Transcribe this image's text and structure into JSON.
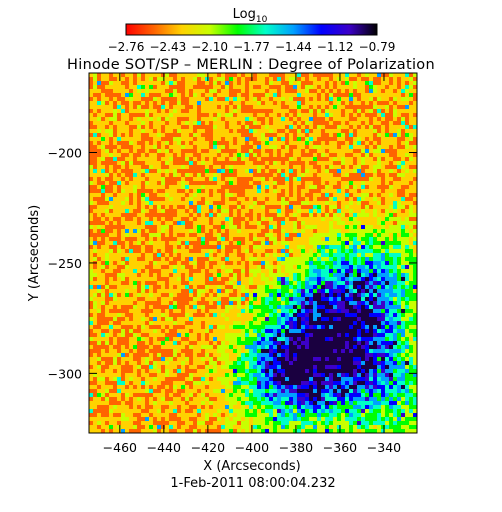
{
  "chart_data": {
    "type": "heatmap",
    "title": "Hinode SOT/SP – MERLIN : Degree of Polarization",
    "xlabel": "X (Arcseconds)",
    "ylabel": "Y (Arcseconds)",
    "date_label": "1-Feb-2011 08:00:04.232",
    "colorbar": {
      "label_main": "Log",
      "label_sub": "10",
      "ticks": [
        "−2.76",
        "−2.43",
        "−2.10",
        "−1.77",
        "−1.44",
        "−1.12",
        "−0.79"
      ],
      "range": [
        -2.76,
        -0.79
      ],
      "colors": [
        "#ff0000",
        "#ff6400",
        "#ffd200",
        "#c8ff00",
        "#00ff00",
        "#00ffc8",
        "#00a0ff",
        "#0000ff",
        "#3c00c8",
        "#000000"
      ]
    },
    "x_ticks": [
      {
        "value": -460,
        "label": "−460"
      },
      {
        "value": -440,
        "label": "−440"
      },
      {
        "value": -420,
        "label": "−420"
      },
      {
        "value": -400,
        "label": "−400"
      },
      {
        "value": -380,
        "label": "−380"
      },
      {
        "value": -360,
        "label": "−360"
      },
      {
        "value": -340,
        "label": "−340"
      }
    ],
    "y_ticks": [
      {
        "value": -200,
        "label": "−200"
      },
      {
        "value": -250,
        "label": "−250"
      },
      {
        "value": -300,
        "label": "−300"
      }
    ],
    "xlim": [
      -474,
      -325
    ],
    "ylim": [
      -327,
      -164
    ],
    "active_region_centers": [
      {
        "x": -382,
        "y": -298,
        "strength": 1.0
      },
      {
        "x": -355,
        "y": -285,
        "strength": 0.7
      },
      {
        "x": -345,
        "y": -255,
        "strength": 0.5
      },
      {
        "x": -370,
        "y": -270,
        "strength": 0.45
      },
      {
        "x": -340,
        "y": -310,
        "strength": 0.45
      }
    ]
  }
}
